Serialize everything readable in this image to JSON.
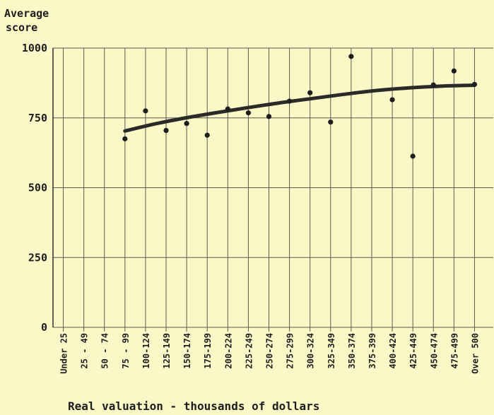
{
  "chart_data": {
    "type": "scatter",
    "title": "",
    "ylabel_lines": [
      "Average",
      "score"
    ],
    "xlabel": "Real valuation - thousands of dollars",
    "ylim": [
      0,
      1000
    ],
    "yticks": [
      "0",
      "250",
      "500",
      "750",
      "1000"
    ],
    "ytick_values": [
      0,
      250,
      500,
      750,
      1000
    ],
    "categories": [
      "Under 25",
      "25 - 49",
      "50 - 74",
      "75 - 99",
      "100-124",
      "125-149",
      "150-174",
      "175-199",
      "200-224",
      "225-249",
      "250-274",
      "275-299",
      "300-324",
      "325-349",
      "350-374",
      "375-399",
      "400-424",
      "425-449",
      "450-474",
      "475-499",
      "Over 500"
    ],
    "series": [
      {
        "values": [
          null,
          null,
          null,
          675,
          775,
          705,
          730,
          688,
          782,
          768,
          755,
          810,
          840,
          735,
          970,
          null,
          815,
          613,
          868,
          918,
          870
        ]
      }
    ],
    "trend_line": {
      "x_start": "75 - 99",
      "x_end": "Over 500",
      "values": [
        703,
        730,
        752,
        771,
        789,
        806,
        821,
        836,
        849,
        858,
        864,
        867
      ]
    },
    "grid": true,
    "legend": "none"
  },
  "colors": {
    "background": "#fbf8c8",
    "ink": "#1e1e1e",
    "grid": "#5a5a50"
  }
}
